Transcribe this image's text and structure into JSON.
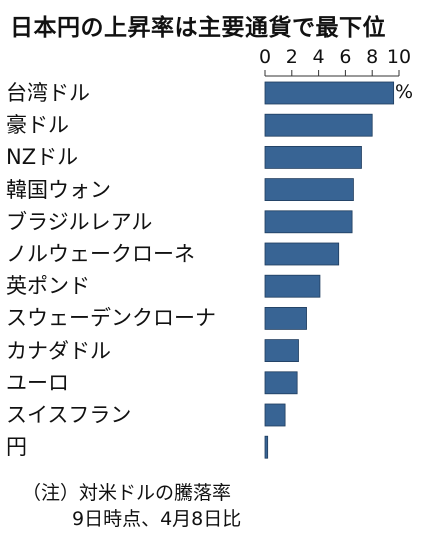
{
  "chart_data": {
    "type": "bar",
    "orientation": "horizontal",
    "title": "日本円の上昇率は主要通貨で最下位",
    "unit": "%",
    "xlim": [
      0,
      10
    ],
    "ticks": [
      "0",
      "2",
      "4",
      "6",
      "8",
      "10"
    ],
    "categories": [
      "台湾ドル",
      "豪ドル",
      "NZドル",
      "韓国ウォン",
      "ブラジルレアル",
      "ノルウェークローネ",
      "英ポンド",
      "スウェーデンクローナ",
      "カナダドル",
      "ユーロ",
      "スイスフラン",
      "円"
    ],
    "values": [
      9.6,
      8.0,
      7.2,
      6.6,
      6.5,
      5.5,
      4.1,
      3.1,
      2.5,
      2.4,
      1.5,
      0.2
    ],
    "bar_color": "#386494",
    "note_line1": "（注）対米ドルの騰落率",
    "note_line2": "9日時点、4月8日比"
  }
}
